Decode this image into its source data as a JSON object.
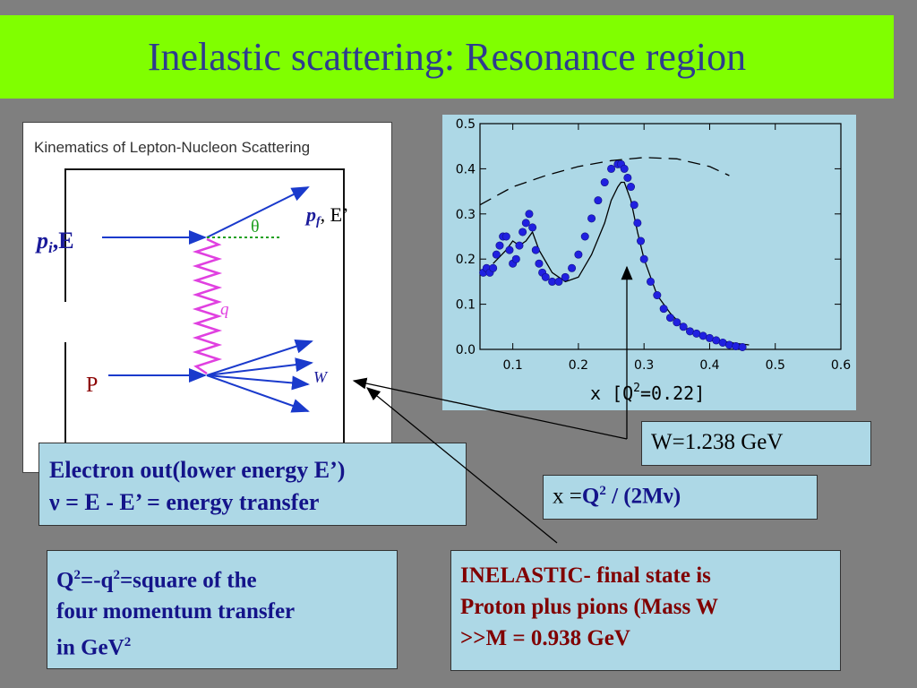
{
  "title": "Inelastic scattering: Resonance region",
  "diagram": {
    "heading": "Kinematics of Lepton-Nucleon Scattering",
    "pi_label": "p",
    "pi_sub": "i",
    "pi_energy": ",E",
    "pf_label": "p",
    "pf_sub": "f",
    "pf_energy": ", E’",
    "theta_label": "θ",
    "q_label": "q",
    "proton_label": "P",
    "w_label": "W"
  },
  "electron_box": {
    "line1": "Electron out(lower energy E’)",
    "line2": "ν =  E - E’ = energy transfer"
  },
  "q2_box": {
    "line1_pre": "Q",
    "line1_sup": "2",
    "line1_mid": "=-q",
    "line1_sup2": "2",
    "line1_post": "=square of the",
    "line2": "four momentum transfer",
    "line3_pre": "in GeV",
    "line3_sup": "2"
  },
  "inelastic_box": {
    "line1": "INELASTIC- final state is",
    "line2": "Proton plus pions (Mass W",
    "line3": ">>M = 0.938 GeV"
  },
  "x_box": {
    "prefix": "x =",
    "q": "Q",
    "q_sup": "2",
    "rest": " / (2Mν)"
  },
  "w_box": {
    "text": "W=1.238 GeV"
  },
  "chart_data": {
    "type": "scatter",
    "xlabel_pre": "x  [Q",
    "xlabel_sup": "2",
    "xlabel_post": "=0.22]",
    "xlim": [
      0.05,
      0.6
    ],
    "ylim": [
      0.0,
      0.5
    ],
    "xticks": [
      "0.1",
      "0.2",
      "0.3",
      "0.4",
      "0.5",
      "0.6"
    ],
    "yticks": [
      "0.0",
      "0.1",
      "0.2",
      "0.3",
      "0.4",
      "0.5"
    ],
    "colors": {
      "points": "#2020e0",
      "curves": "#000000",
      "background": "#add8e6"
    },
    "series": [
      {
        "style": "points",
        "x": [
          0.055,
          0.06,
          0.065,
          0.07,
          0.075,
          0.08,
          0.085,
          0.09,
          0.095,
          0.1,
          0.105,
          0.11,
          0.115,
          0.12,
          0.125,
          0.13,
          0.135,
          0.14,
          0.145,
          0.15,
          0.16,
          0.17,
          0.18,
          0.19,
          0.2,
          0.21,
          0.22,
          0.23,
          0.24,
          0.25,
          0.26,
          0.265,
          0.27,
          0.275,
          0.28,
          0.285,
          0.29,
          0.295,
          0.3,
          0.31,
          0.32,
          0.33,
          0.34,
          0.35,
          0.36,
          0.37,
          0.38,
          0.39,
          0.4,
          0.41,
          0.42,
          0.43,
          0.44,
          0.45
        ],
        "y": [
          0.17,
          0.18,
          0.17,
          0.18,
          0.21,
          0.23,
          0.25,
          0.25,
          0.22,
          0.19,
          0.2,
          0.23,
          0.26,
          0.28,
          0.3,
          0.27,
          0.22,
          0.19,
          0.17,
          0.16,
          0.15,
          0.15,
          0.16,
          0.18,
          0.21,
          0.25,
          0.29,
          0.33,
          0.37,
          0.4,
          0.41,
          0.41,
          0.4,
          0.38,
          0.36,
          0.32,
          0.28,
          0.24,
          0.2,
          0.15,
          0.12,
          0.09,
          0.07,
          0.06,
          0.05,
          0.04,
          0.035,
          0.03,
          0.025,
          0.02,
          0.015,
          0.01,
          0.007,
          0.005
        ]
      },
      {
        "style": "solid",
        "x": [
          0.07,
          0.09,
          0.1,
          0.11,
          0.12,
          0.13,
          0.14,
          0.16,
          0.18,
          0.2,
          0.22,
          0.24,
          0.25,
          0.26,
          0.265,
          0.27,
          0.28,
          0.29,
          0.3,
          0.32,
          0.34,
          0.36,
          0.38,
          0.4,
          0.42,
          0.44,
          0.46
        ],
        "y": [
          0.19,
          0.22,
          0.24,
          0.23,
          0.24,
          0.26,
          0.22,
          0.17,
          0.15,
          0.16,
          0.21,
          0.28,
          0.33,
          0.36,
          0.37,
          0.37,
          0.33,
          0.26,
          0.2,
          0.12,
          0.08,
          0.05,
          0.035,
          0.025,
          0.018,
          0.013,
          0.01
        ]
      },
      {
        "style": "dashed",
        "x": [
          0.05,
          0.1,
          0.15,
          0.2,
          0.25,
          0.3,
          0.35,
          0.4,
          0.43
        ],
        "y": [
          0.32,
          0.36,
          0.385,
          0.405,
          0.418,
          0.425,
          0.422,
          0.405,
          0.385
        ]
      }
    ]
  }
}
